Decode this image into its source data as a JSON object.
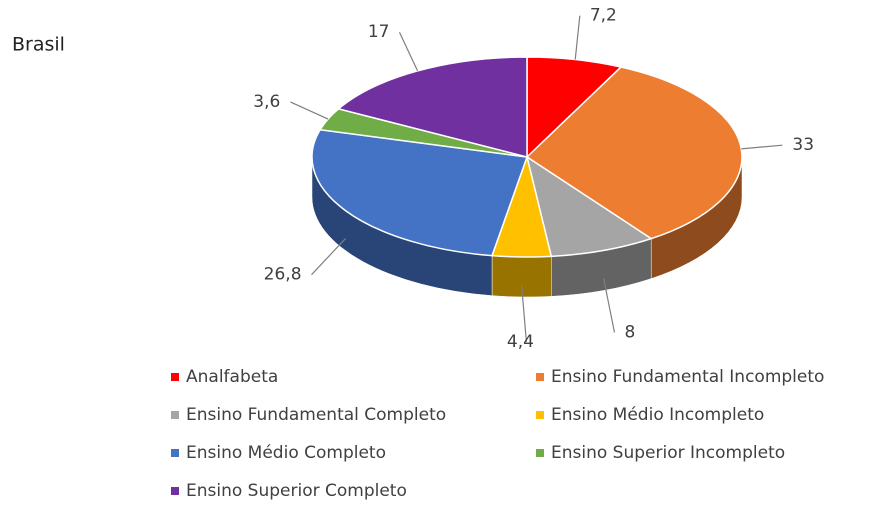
{
  "chart_data": {
    "type": "pie",
    "title": "Brasil",
    "categories": [
      "Analfabeta",
      "Ensino Fundamental Incompleto",
      "Ensino Fundamental Completo",
      "Ensino Médio Incompleto",
      "Ensino Médio Completo",
      "Ensino Superior Incompleto",
      "Ensino Superior Completo"
    ],
    "values": [
      7.2,
      33,
      8,
      4.4,
      26.8,
      3.6,
      17
    ],
    "value_labels": [
      "7,2",
      "33",
      "8",
      "4,4",
      "26,8",
      "3,6",
      "17"
    ],
    "colors": [
      "#ff0000",
      "#ed7d31",
      "#a5a5a5",
      "#ffc000",
      "#4472c4",
      "#70ad47",
      "#7030a0"
    ],
    "legend": "bottom"
  }
}
